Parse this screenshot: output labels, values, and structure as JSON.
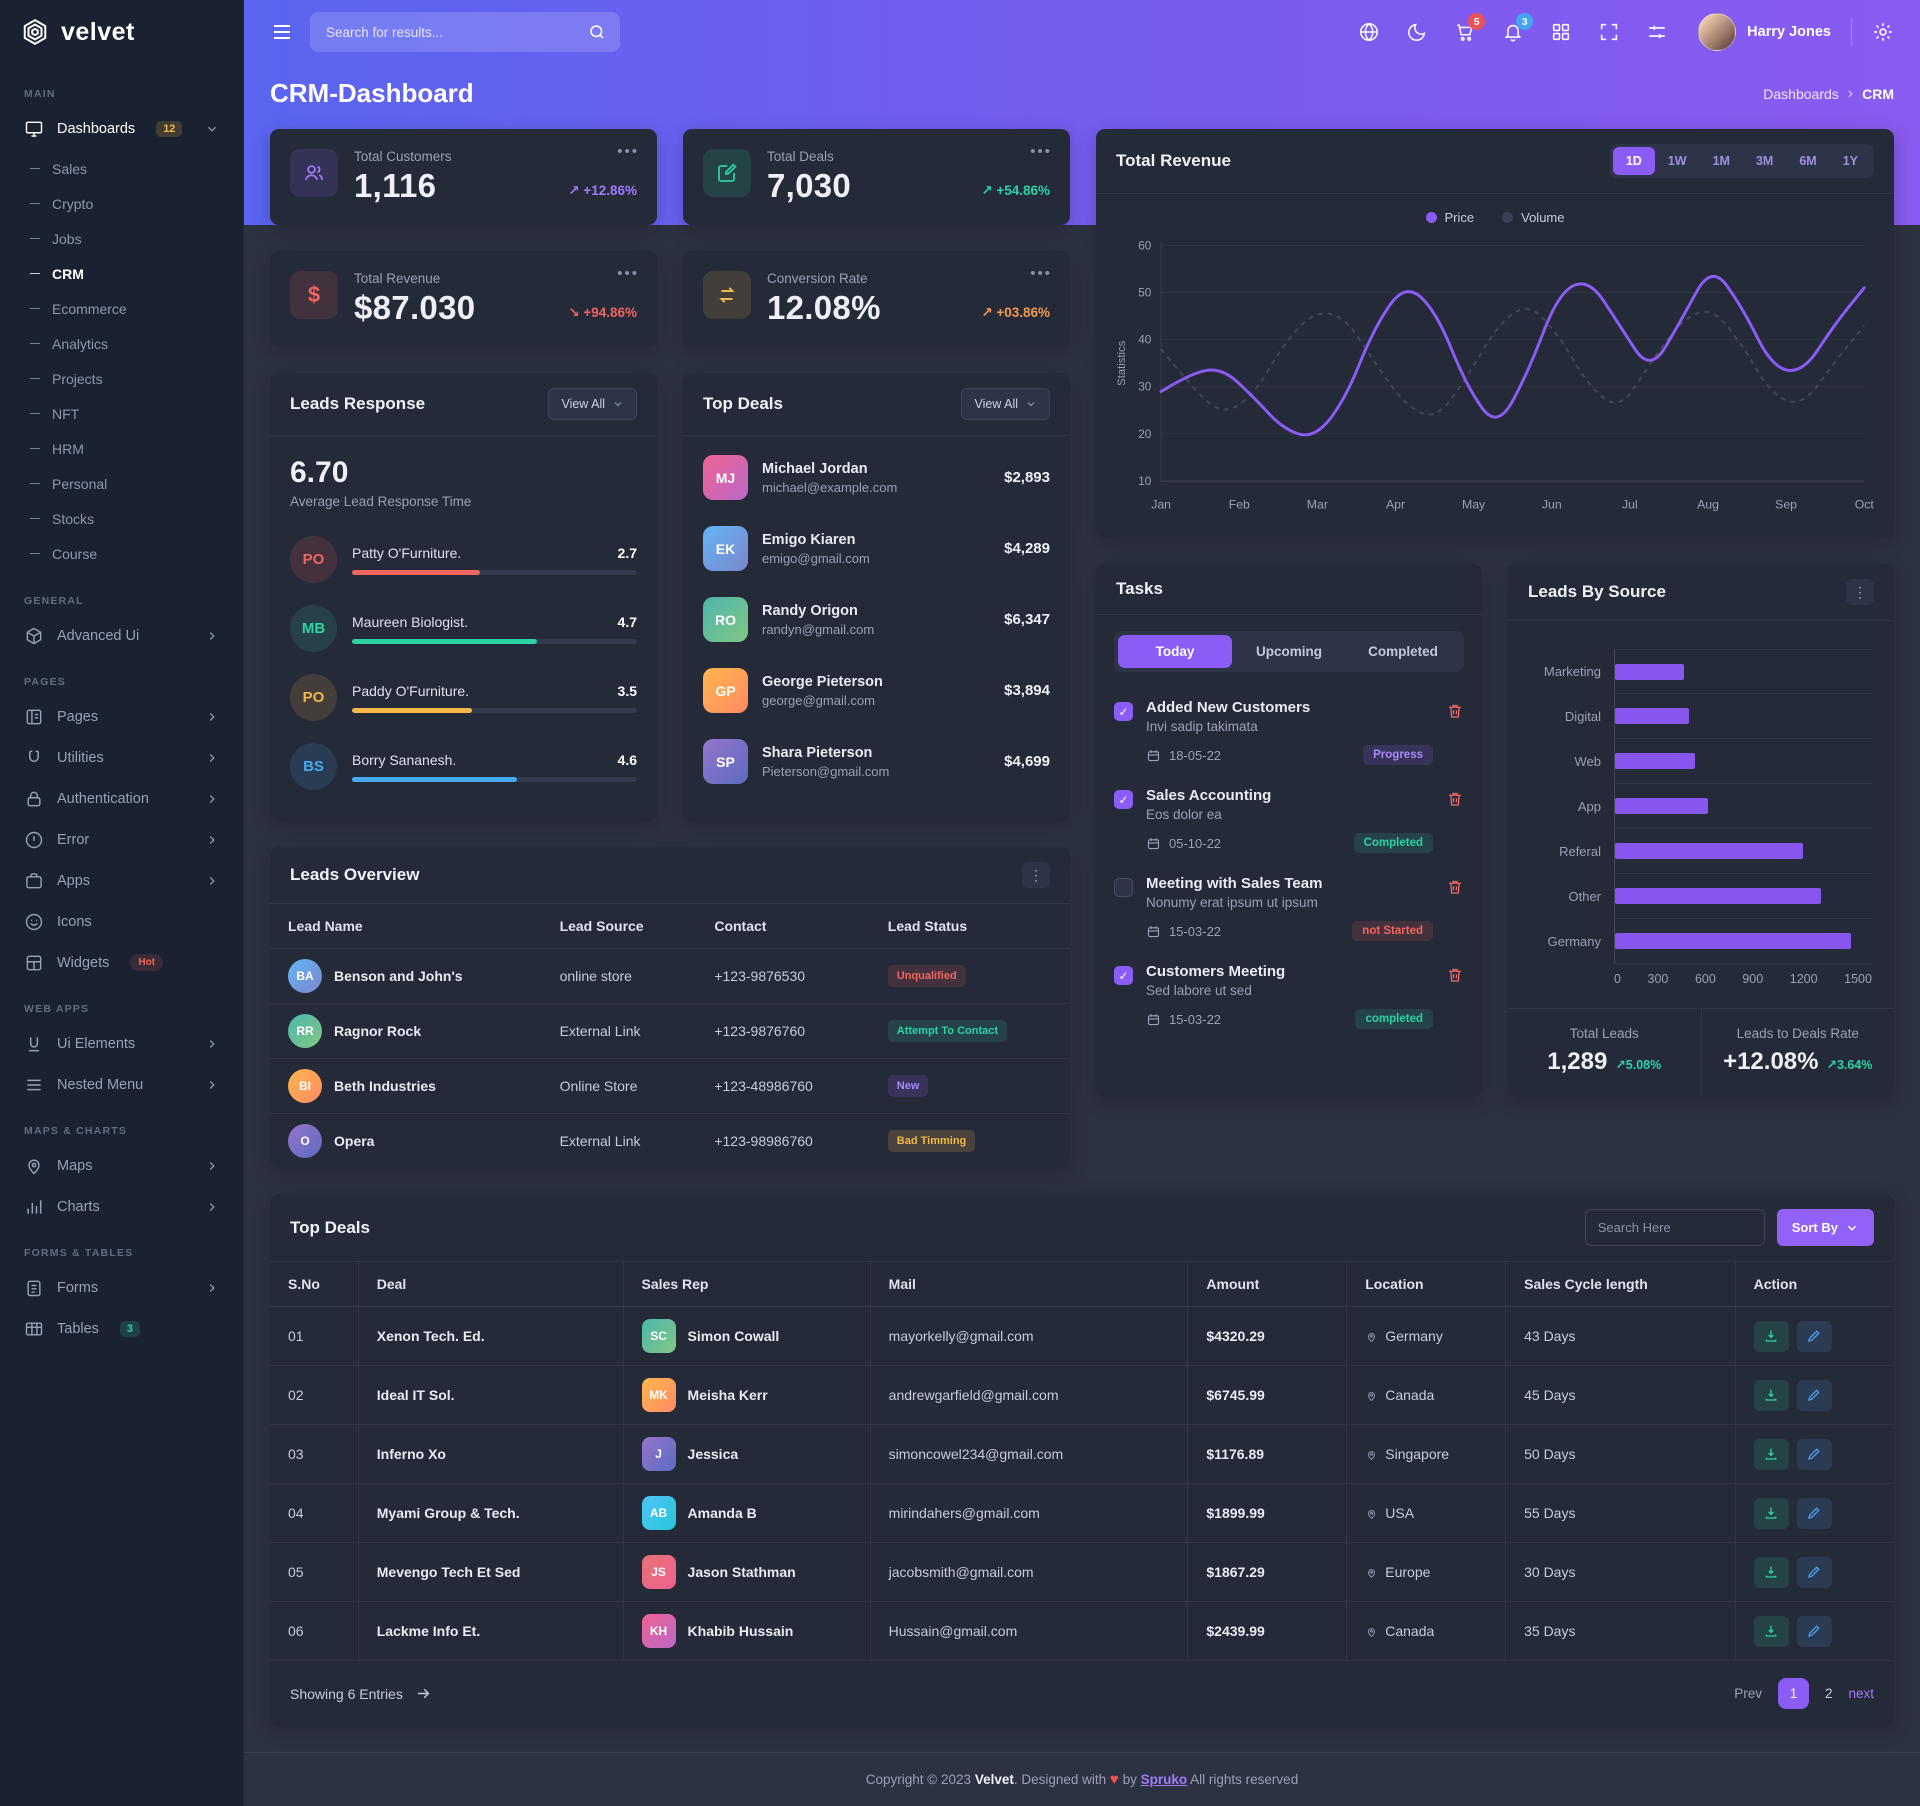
{
  "brand": {
    "name": "velvet"
  },
  "topbar": {
    "search_placeholder": "Search for results...",
    "user_name": "Harry Jones",
    "icons": [
      {
        "icon": "globe"
      },
      {
        "icon": "moon"
      },
      {
        "icon": "cart",
        "badge": "5",
        "badge_color": "red"
      },
      {
        "icon": "bell",
        "badge": "3",
        "badge_color": "blue"
      },
      {
        "icon": "grid"
      },
      {
        "icon": "expand"
      },
      {
        "icon": "sliders"
      }
    ]
  },
  "page": {
    "title": "CRM-Dashboard",
    "breadcrumb_parent": "Dashboards",
    "breadcrumb_current": "CRM"
  },
  "sidebar": {
    "sections": [
      {
        "label": "MAIN",
        "items": [
          {
            "name": "Dashboards",
            "icon": "monitor",
            "badge": "12",
            "chevron": "down",
            "active": true,
            "children": [
              "Sales",
              "Crypto",
              "Jobs",
              "CRM",
              "Ecommerce",
              "Analytics",
              "Projects",
              "NFT",
              "HRM",
              "Personal",
              "Stocks",
              "Course"
            ],
            "active_child": "CRM"
          }
        ]
      },
      {
        "label": "GENERAL",
        "items": [
          {
            "name": "Advanced Ui",
            "icon": "cube",
            "chevron": "right"
          }
        ]
      },
      {
        "label": "PAGES",
        "items": [
          {
            "name": "Pages",
            "icon": "pages",
            "chevron": "right"
          },
          {
            "name": "Utilities",
            "icon": "utilities",
            "chevron": "right"
          },
          {
            "name": "Authentication",
            "icon": "lock",
            "chevron": "right"
          },
          {
            "name": "Error",
            "icon": "error",
            "chevron": "right"
          },
          {
            "name": "Apps",
            "icon": "apps",
            "chevron": "right"
          },
          {
            "name": "Icons",
            "icon": "smiley"
          },
          {
            "name": "Widgets",
            "icon": "widgets",
            "tag": "Hot"
          }
        ]
      },
      {
        "label": "WEB APPS",
        "items": [
          {
            "name": "Ui Elements",
            "icon": "ui",
            "chevron": "right"
          },
          {
            "name": "Nested Menu",
            "icon": "nested",
            "chevron": "right"
          }
        ]
      },
      {
        "label": "MAPS & CHARTS",
        "items": [
          {
            "name": "Maps",
            "icon": "map",
            "chevron": "right"
          },
          {
            "name": "Charts",
            "icon": "chart",
            "chevron": "right"
          }
        ]
      },
      {
        "label": "FORMS & TABLES",
        "items": [
          {
            "name": "Forms",
            "icon": "forms",
            "chevron": "right"
          },
          {
            "name": "Tables",
            "icon": "table",
            "badge": "3",
            "badge_green": true
          }
        ]
      }
    ]
  },
  "stats": [
    {
      "label": "Total Customers",
      "value": "1,116",
      "trend": "+12.86%",
      "dir": "up",
      "tone": "purple",
      "icon": "users"
    },
    {
      "label": "Total Deals",
      "value": "7,030",
      "trend": "+54.86%",
      "dir": "up",
      "tone": "teal",
      "icon": "pencil"
    },
    {
      "label": "Total Revenue",
      "value": "$87.030",
      "trend": "+94.86%",
      "dir": "down",
      "tone": "red",
      "icon": "dollar"
    },
    {
      "label": "Conversion Rate",
      "value": "12.08%",
      "trend": "+03.86%",
      "dir": "up",
      "tone": "orange",
      "icon": "swap"
    }
  ],
  "leads_response": {
    "title": "Leads Response",
    "view_all": "View All",
    "score": "6.70",
    "caption": "Average Lead Response Time",
    "people": [
      {
        "initials": "PO",
        "name": "Patty O'Furniture.",
        "value": "2.7",
        "color": "#f0655d",
        "pct": 45
      },
      {
        "initials": "MB",
        "name": "Maureen Biologist.",
        "value": "4.7",
        "color": "#2ed3a4",
        "pct": 65
      },
      {
        "initials": "PO",
        "name": "Paddy O'Furniture.",
        "value": "3.5",
        "color": "#f5b849",
        "pct": 42
      },
      {
        "initials": "BS",
        "name": "Borry Sananesh.",
        "value": "4.6",
        "color": "#45aaf2",
        "pct": 58
      }
    ]
  },
  "top_deals_list": {
    "title": "Top Deals",
    "view_all": "View All",
    "items": [
      {
        "name": "Michael Jordan",
        "email": "michael@example.com",
        "amount": "$2,893"
      },
      {
        "name": "Emigo Kiaren",
        "email": "emigo@gmail.com",
        "amount": "$4,289"
      },
      {
        "name": "Randy Origon",
        "email": "randyn@gmail.com",
        "amount": "$6,347"
      },
      {
        "name": "George Pieterson",
        "email": "george@gmail.com",
        "amount": "$3,894"
      },
      {
        "name": "Shara Pieterson",
        "email": "Pieterson@gmail.com",
        "amount": "$4,699"
      }
    ]
  },
  "revenue": {
    "title": "Total Revenue",
    "ranges": [
      "1D",
      "1W",
      "1M",
      "3M",
      "6M",
      "1Y"
    ],
    "active_range": "1D",
    "legend": [
      {
        "label": "Price",
        "color": "#8b5cf6"
      },
      {
        "label": "Volume",
        "color": "#3a4057"
      }
    ],
    "chart_data": {
      "type": "line",
      "ylabel": "Statistics",
      "yticks": [
        60,
        50,
        40,
        30,
        20,
        10
      ],
      "ylim": [
        10,
        60
      ],
      "xticks": [
        "Jan",
        "Feb",
        "Mar",
        "Apr",
        "May",
        "Jun",
        "Jul",
        "Aug",
        "Sep",
        "Oct"
      ],
      "series": [
        {
          "name": "Price",
          "values": [
            29,
            33,
            34,
            28,
            21,
            19,
            27,
            43,
            52,
            46,
            30,
            21,
            33,
            50,
            53,
            43,
            33,
            44,
            56,
            47,
            34,
            33,
            43,
            51
          ]
        },
        {
          "name": "Volume",
          "values": [
            38,
            30,
            24,
            28,
            39,
            46,
            45,
            35,
            26,
            23,
            32,
            43,
            48,
            41,
            30,
            25,
            35,
            44,
            47,
            39,
            28,
            26,
            35,
            43
          ]
        }
      ]
    }
  },
  "tasks": {
    "title": "Tasks",
    "tabs": [
      "Today",
      "Upcoming",
      "Completed"
    ],
    "active_tab": "Today",
    "items": [
      {
        "title": "Added New Customers",
        "desc": "Invi sadip takimata",
        "date": "18-05-22",
        "status": "Progress",
        "status_tone": "purple",
        "checked": true
      },
      {
        "title": "Sales Accounting",
        "desc": "Eos dolor ea",
        "date": "05-10-22",
        "status": "Completed",
        "status_tone": "teal",
        "checked": true
      },
      {
        "title": "Meeting with Sales Team",
        "desc": "Nonumy erat ipsum ut ipsum",
        "date": "15-03-22",
        "status": "not Started",
        "status_tone": "red",
        "checked": false
      },
      {
        "title": "Customers Meeting",
        "desc": "Sed labore ut sed",
        "date": "15-03-22",
        "status": "completed",
        "status_tone": "teal",
        "checked": true
      }
    ]
  },
  "leads_by_source": {
    "title": "Leads By Source",
    "chart_data": {
      "type": "bar",
      "orientation": "horizontal",
      "categories": [
        "Marketing",
        "Digital",
        "Web",
        "App",
        "Referal",
        "Other",
        "Germany"
      ],
      "values": [
        400,
        430,
        470,
        545,
        1100,
        1200,
        1380
      ],
      "xticks": [
        0,
        300,
        600,
        900,
        1200,
        1500
      ],
      "xlim": [
        0,
        1500
      ],
      "bar_color": "#8757f0"
    },
    "total_leads_label": "Total Leads",
    "total_leads": "1,289",
    "total_leads_trend": "5.08%",
    "rate_label": "Leads to Deals Rate",
    "rate": "+12.08%",
    "rate_trend": "3.64%"
  },
  "leads_overview": {
    "title": "Leads Overview",
    "columns": [
      "Lead Name",
      "Lead Source",
      "Contact",
      "Lead Status"
    ],
    "rows": [
      {
        "name": "Benson and John's",
        "source": "online store",
        "contact": "+123-9876530",
        "status": "Unqualified",
        "status_tone": "red"
      },
      {
        "name": "Ragnor Rock",
        "source": "External Link",
        "contact": "+123-9876760",
        "status": "Attempt To Contact",
        "status_tone": "teal"
      },
      {
        "name": "Beth Industries",
        "source": "Online Store",
        "contact": "+123-48986760",
        "status": "New",
        "status_tone": "purple"
      },
      {
        "name": "Opera",
        "source": "External Link",
        "contact": "+123-98986760",
        "status": "Bad Timming",
        "status_tone": "orange"
      }
    ]
  },
  "deals_table": {
    "title": "Top Deals",
    "search_placeholder": "Search Here",
    "sort_label": "Sort By",
    "columns": [
      "S.No",
      "Deal",
      "Sales Rep",
      "Mail",
      "Amount",
      "Location",
      "Sales Cycle length",
      "Action"
    ],
    "rows": [
      {
        "no": "01",
        "deal": "Xenon Tech. Ed.",
        "rep": "Simon Cowall",
        "mail": "mayorkelly@gmail.com",
        "amount": "$4320.29",
        "location": "Germany",
        "cycle": "43 Days"
      },
      {
        "no": "02",
        "deal": "Ideal IT Sol.",
        "rep": "Meisha Kerr",
        "mail": "andrewgarfield@gmail.com",
        "amount": "$6745.99",
        "location": "Canada",
        "cycle": "45 Days"
      },
      {
        "no": "03",
        "deal": "Inferno Xo",
        "rep": "Jessica",
        "mail": "simoncowel234@gmail.com",
        "amount": "$1176.89",
        "location": "Singapore",
        "cycle": "50 Days"
      },
      {
        "no": "04",
        "deal": "Myami Group & Tech.",
        "rep": "Amanda B",
        "mail": "mirindahers@gmail.com",
        "amount": "$1899.99",
        "location": "USA",
        "cycle": "55 Days"
      },
      {
        "no": "05",
        "deal": "Mevengo Tech Et Sed",
        "rep": "Jason Stathman",
        "mail": "jacobsmith@gmail.com",
        "amount": "$1867.29",
        "location": "Europe",
        "cycle": "30 Days"
      },
      {
        "no": "06",
        "deal": "Lackme Info Et.",
        "rep": "Khabib Hussain",
        "mail": "Hussain@gmail.com",
        "amount": "$2439.99",
        "location": "Canada",
        "cycle": "35 Days"
      }
    ],
    "showing": "Showing 6 Entries",
    "pagination": {
      "prev": "Prev",
      "pages": [
        "1",
        "2"
      ],
      "active": "1",
      "next": "next"
    }
  },
  "footer": {
    "prefix": "Copyright © 2023",
    "brand": "Velvet",
    "mid": ". Designed with",
    "heart": "♥",
    "by": "by",
    "link": "Spruko",
    "suffix": "All rights reserved"
  }
}
